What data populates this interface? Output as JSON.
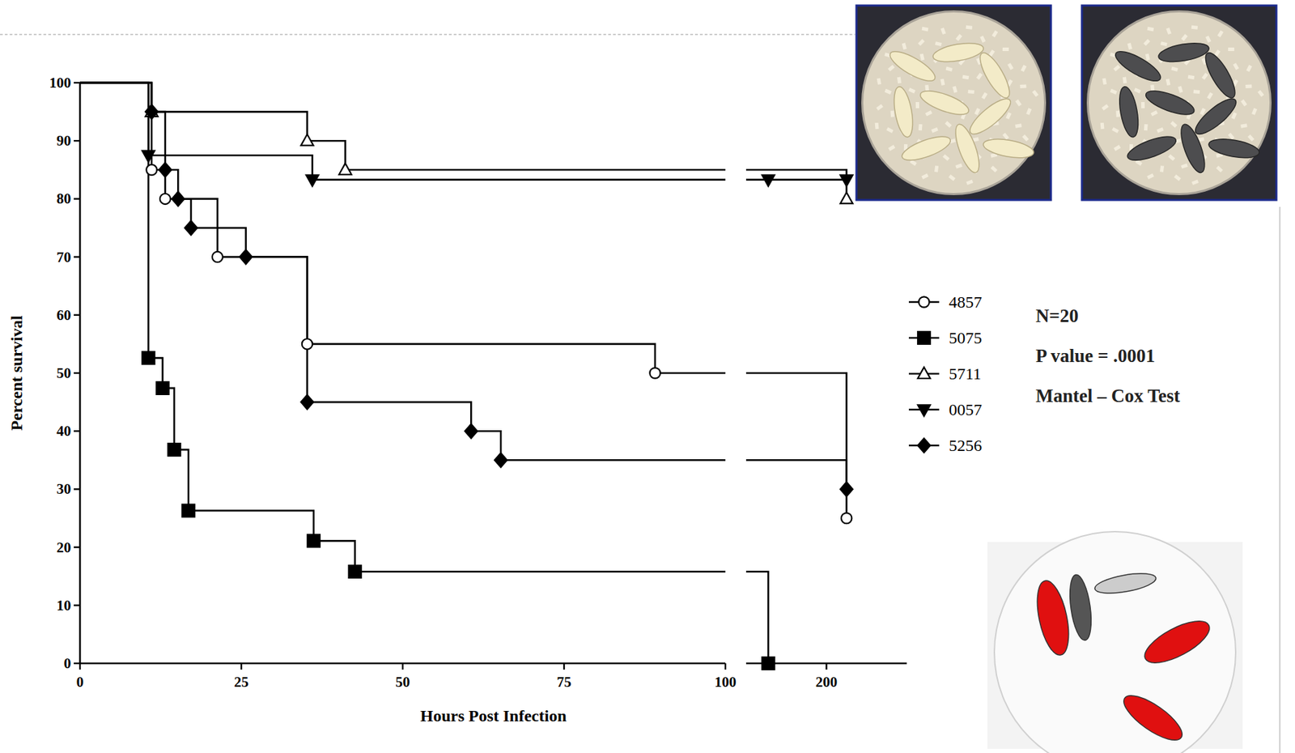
{
  "chart_data": {
    "type": "line",
    "line_style": "step",
    "x_label": "Hours Post Infection",
    "y_label": "Percent survival",
    "xlim": [
      [
        0,
        100
      ],
      [
        150,
        250
      ]
    ],
    "xticks": [
      0,
      25,
      50,
      75,
      100,
      200
    ],
    "ylim": [
      0,
      100
    ],
    "yticks": [
      0,
      10,
      20,
      30,
      40,
      50,
      60,
      70,
      80,
      90,
      100
    ],
    "grid": false,
    "legend": "right",
    "annotations": [
      "N=20",
      "P value = .0001",
      "Mantel – Cox Test"
    ],
    "series": [
      {
        "name": "4857",
        "color": "#000000",
        "marker": "circle-open",
        "x": [
          0,
          11.1,
          13.2,
          21.3,
          35.2,
          89.1,
          212.5
        ],
        "values": [
          100,
          85,
          80,
          70,
          55,
          50,
          25
        ]
      },
      {
        "name": "5075",
        "color": "#000000",
        "marker": "square",
        "x": [
          0,
          10.6,
          12.8,
          14.6,
          16.8,
          36.2,
          42.6,
          163.8
        ],
        "values": [
          100,
          52.6,
          47.4,
          36.8,
          26.3,
          21.1,
          15.8,
          0
        ]
      },
      {
        "name": "5711",
        "color": "#000000",
        "marker": "triangle-open",
        "x": [
          0,
          11.1,
          35.2,
          41.1,
          212.5
        ],
        "values": [
          100,
          95,
          90,
          85,
          80
        ]
      },
      {
        "name": "0057",
        "color": "#000000",
        "marker": "triangle-down",
        "x": [
          0,
          10.6,
          36,
          163.8,
          212.5
        ],
        "values": [
          100,
          87.5,
          83.3,
          83.3,
          83.3
        ]
      },
      {
        "name": "5256",
        "color": "#000000",
        "marker": "diamond",
        "x": [
          0,
          11.1,
          13.2,
          15.2,
          17.2,
          25.7,
          35.2,
          60.6,
          65.2,
          212.5
        ],
        "values": [
          100,
          95,
          85,
          80,
          75,
          70,
          45,
          40,
          35,
          30
        ]
      }
    ]
  }
}
